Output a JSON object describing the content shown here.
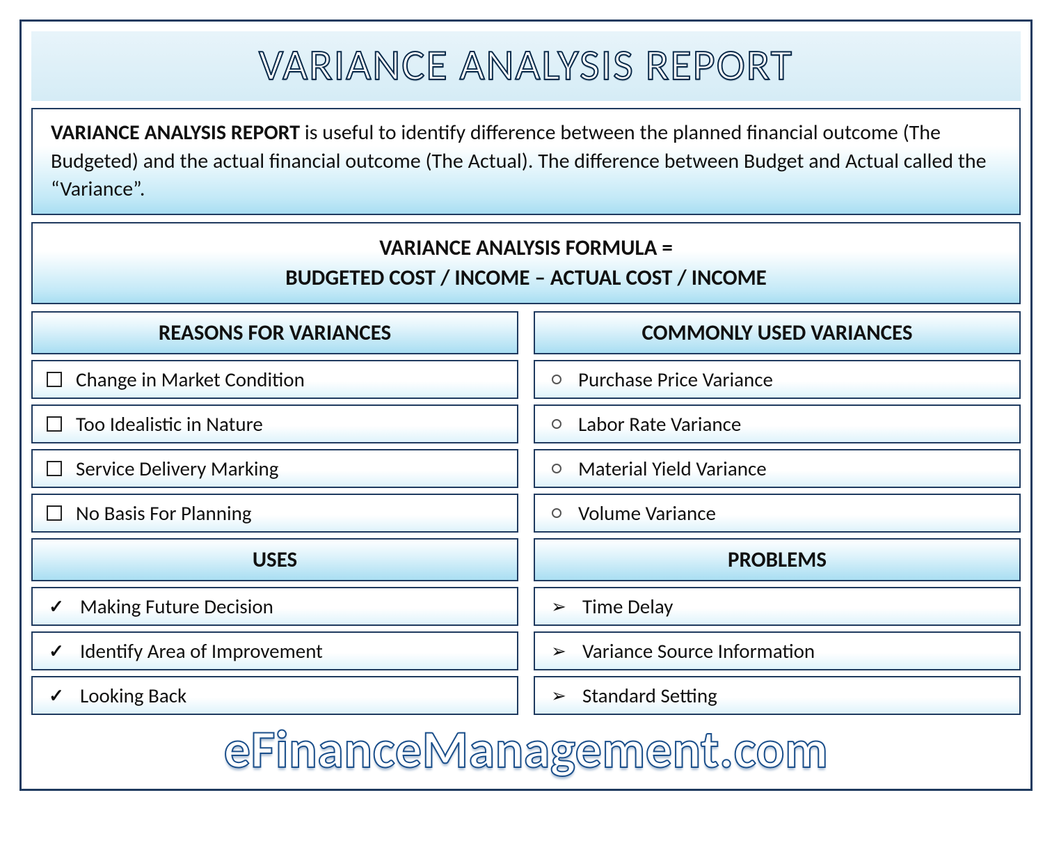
{
  "colors": {
    "frame_border": "#1f3a5f",
    "title_bg_top": "#e8f4fa",
    "title_bg_bottom": "#d5ecf6",
    "title_stroke": "#0a2a4a",
    "panel_grad_top": "#ffffff",
    "panel_grad_mid": "#c3e9f7",
    "panel_grad_bottom": "#a9def2",
    "head_grad_mid": "#dff3fb",
    "item_grad_bottom": "#dff3fb",
    "text": "#111111",
    "footer_stroke": "#1a4e8a"
  },
  "typography": {
    "title_fontsize": 62,
    "desc_fontsize": 30,
    "formula_fontsize": 31,
    "section_head_fontsize": 31,
    "item_fontsize": 29,
    "footer_fontsize": 76,
    "font_family": "Calibri"
  },
  "title": "VARIANCE ANALYSIS REPORT",
  "description": {
    "lead": "VARIANCE ANALYSIS REPORT",
    "rest": " is useful to identify difference between the planned financial outcome (The Budgeted) and the actual financial outcome (The Actual). The difference between Budget and Actual called the “Variance”."
  },
  "formula": {
    "line1": "VARIANCE ANALYSIS FORMULA =",
    "line2": "BUDGETED COST / INCOME – ACTUAL COST / INCOME"
  },
  "left": {
    "sec1": {
      "heading": "REASONS FOR VARIANCES",
      "bullet_style": "square",
      "items": [
        "Change in Market Condition",
        "Too Idealistic in Nature",
        "Service Delivery Marking",
        "No Basis For Planning"
      ]
    },
    "sec2": {
      "heading": "USES",
      "bullet_style": "check",
      "items": [
        "Making Future Decision",
        "Identify Area of Improvement",
        "Looking Back"
      ]
    }
  },
  "right": {
    "sec1": {
      "heading": "COMMONLY USED VARIANCES",
      "bullet_style": "circle",
      "items": [
        "Purchase Price Variance",
        "Labor Rate Variance",
        "Material Yield Variance",
        "Volume Variance"
      ]
    },
    "sec2": {
      "heading": "PROBLEMS",
      "bullet_style": "arrow",
      "items": [
        "Time Delay",
        "Variance Source Information",
        "Standard Setting"
      ]
    }
  },
  "footer": "eFinanceManagement.com"
}
